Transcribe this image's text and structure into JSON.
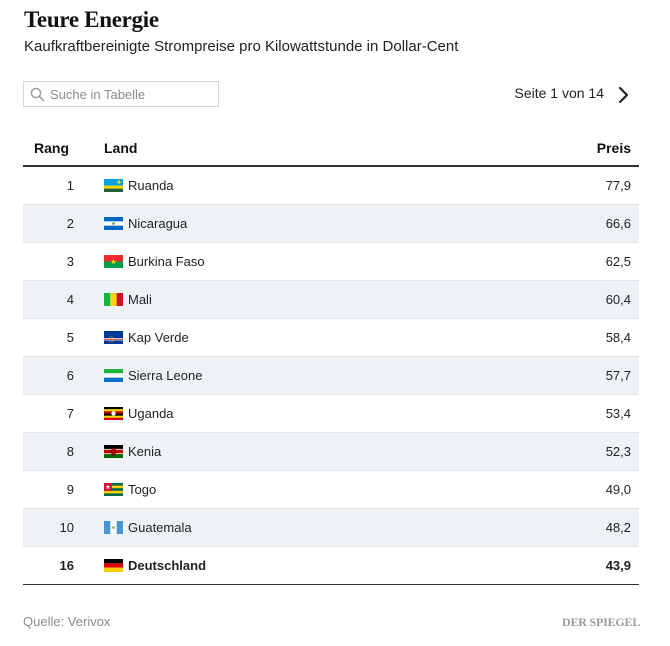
{
  "header": {
    "title": "Teure Energie",
    "subtitle": "Kaufkraftbereinigte Strompreise pro Kilowattstunde in Dollar-Cent"
  },
  "search": {
    "placeholder": "Suche in Tabelle",
    "value": ""
  },
  "pager": {
    "label": "Seite 1 von 14",
    "next_icon": "chevron-right-icon"
  },
  "table": {
    "columns": [
      "Rang",
      "Land",
      "Preis"
    ],
    "rows": [
      {
        "rank": "1",
        "country": "Ruanda",
        "price": "77,9",
        "flag": "rwanda-flag-icon"
      },
      {
        "rank": "2",
        "country": "Nicaragua",
        "price": "66,6",
        "flag": "nicaragua-flag-icon"
      },
      {
        "rank": "3",
        "country": "Burkina Faso",
        "price": "62,5",
        "flag": "burkina-faso-flag-icon"
      },
      {
        "rank": "4",
        "country": "Mali",
        "price": "60,4",
        "flag": "mali-flag-icon"
      },
      {
        "rank": "5",
        "country": "Kap Verde",
        "price": "58,4",
        "flag": "cape-verde-flag-icon"
      },
      {
        "rank": "6",
        "country": "Sierra Leone",
        "price": "57,7",
        "flag": "sierra-leone-flag-icon"
      },
      {
        "rank": "7",
        "country": "Uganda",
        "price": "53,4",
        "flag": "uganda-flag-icon"
      },
      {
        "rank": "8",
        "country": "Kenia",
        "price": "52,3",
        "flag": "kenya-flag-icon"
      },
      {
        "rank": "9",
        "country": "Togo",
        "price": "49,0",
        "flag": "togo-flag-icon"
      },
      {
        "rank": "10",
        "country": "Guatemala",
        "price": "48,2",
        "flag": "guatemala-flag-icon"
      },
      {
        "rank": "16",
        "country": "Deutschland",
        "price": "43,9",
        "flag": "germany-flag-icon",
        "highlighted": true
      }
    ]
  },
  "footer": {
    "source": "Quelle: Verivox",
    "brand": "DER SPIEGEL"
  },
  "colors": {
    "zebra": "#eef2f6",
    "rule": "#333333",
    "muted": "#8c8c8c"
  }
}
